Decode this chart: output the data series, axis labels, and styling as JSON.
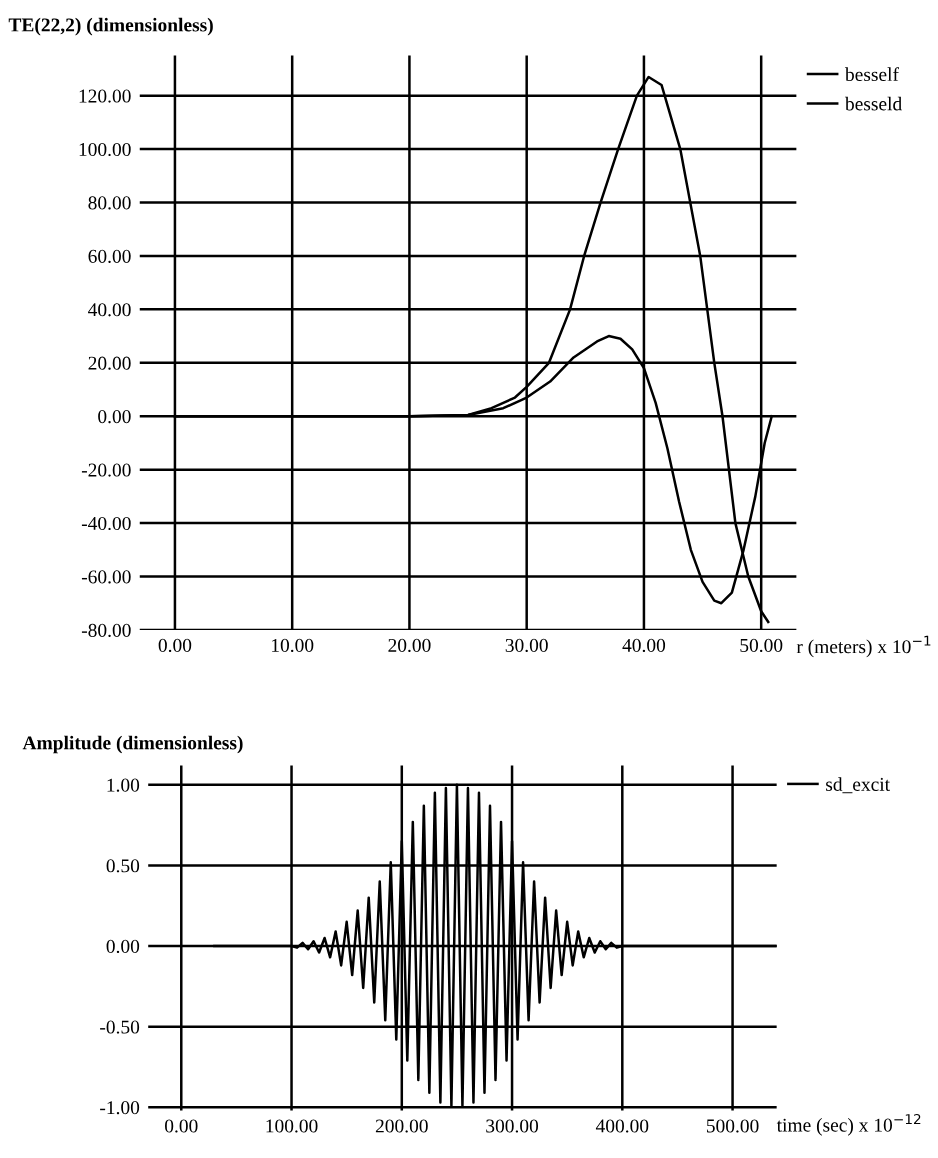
{
  "chart_data": [
    {
      "type": "line",
      "ylabel": "TE(22,2) (dimensionless)",
      "xlabel": "r (meters) x 10$^{−1}$",
      "xlim": [
        -3,
        53
      ],
      "ylim": [
        -80,
        135
      ],
      "xticks": [
        {
          "value": 0,
          "label": "0.00"
        },
        {
          "value": 10,
          "label": "10.00"
        },
        {
          "value": 20,
          "label": "20.00"
        },
        {
          "value": 30,
          "label": "30.00"
        },
        {
          "value": 40,
          "label": "40.00"
        },
        {
          "value": 50,
          "label": "50.00"
        }
      ],
      "yticks": [
        {
          "value": -80,
          "label": "-80.00"
        },
        {
          "value": -60,
          "label": "-60.00"
        },
        {
          "value": -40,
          "label": "-40.00"
        },
        {
          "value": -20,
          "label": "-20.00"
        },
        {
          "value": 0,
          "label": "0.00"
        },
        {
          "value": 20,
          "label": "20.00"
        },
        {
          "value": 40,
          "label": "40.00"
        },
        {
          "value": 60,
          "label": "60.00"
        },
        {
          "value": 80,
          "label": "80.00"
        },
        {
          "value": 100,
          "label": "100.00"
        },
        {
          "value": 120,
          "label": "120.00"
        }
      ],
      "grid": true,
      "legend": "top right",
      "marker": "none",
      "line_style": "solid",
      "series": [
        {
          "name": "besself",
          "color": "#000000",
          "x": [
            0,
            20,
            25,
            27,
            29,
            30,
            31.9,
            33.7,
            34.9,
            36.3,
            37.8,
            39.4,
            40.4,
            41.5,
            43.1,
            44.8,
            45.4,
            46,
            46.7,
            47.8,
            48.9,
            50,
            50.6
          ],
          "values": [
            0,
            0,
            0.5,
            3,
            7,
            11,
            20,
            40,
            60,
            80,
            100,
            120,
            127,
            124,
            100,
            60,
            40,
            20,
            0,
            -40,
            -60,
            -73,
            -77
          ]
        },
        {
          "name": "besseld",
          "color": "#000000",
          "x": [
            0,
            20,
            25,
            28,
            30,
            32,
            34,
            36,
            37,
            38,
            39,
            40,
            41,
            42,
            43,
            44,
            45,
            46,
            46.6,
            47.5,
            48.5,
            49.5,
            50.3,
            50.9
          ],
          "values": [
            0,
            0,
            0.5,
            3,
            7,
            13,
            22,
            28,
            30,
            29,
            25,
            18,
            5,
            -12,
            -32,
            -50,
            -62,
            -69,
            -70,
            -66,
            -50,
            -30,
            -10,
            0
          ]
        }
      ]
    },
    {
      "type": "line",
      "ylabel": "Amplitude (dimensionless)",
      "xlabel": "time (sec) x 10$^{−12}$",
      "xlim": [
        -30,
        540
      ],
      "ylim": [
        -1.02,
        1.12
      ],
      "xticks": [
        {
          "value": 0,
          "label": "0.00"
        },
        {
          "value": 100,
          "label": "100.00"
        },
        {
          "value": 200,
          "label": "200.00"
        },
        {
          "value": 300,
          "label": "300.00"
        },
        {
          "value": 400,
          "label": "400.00"
        },
        {
          "value": 500,
          "label": "500.00"
        }
      ],
      "yticks": [
        {
          "value": -1,
          "label": "-1.00"
        },
        {
          "value": -0.5,
          "label": "-0.50"
        },
        {
          "value": 0,
          "label": "0.00"
        },
        {
          "value": 0.5,
          "label": "0.50"
        },
        {
          "value": 1,
          "label": "1.00"
        }
      ],
      "grid": true,
      "legend": "top right",
      "marker": "none",
      "line_style": "solid",
      "series": [
        {
          "name": "sd_excit",
          "color": "#000000",
          "x": [
            30,
            100,
            105,
            110,
            115,
            120,
            125,
            130,
            135,
            140,
            145,
            150,
            155,
            160,
            165,
            170,
            175,
            180,
            185,
            190,
            195,
            200,
            205,
            210,
            215,
            220,
            225,
            230,
            235,
            240,
            245,
            250,
            255,
            260,
            265,
            270,
            275,
            280,
            285,
            290,
            295,
            300,
            305,
            310,
            315,
            320,
            325,
            330,
            335,
            340,
            345,
            350,
            355,
            360,
            365,
            370,
            375,
            380,
            385,
            390,
            395,
            400,
            540
          ],
          "values": [
            0,
            0,
            -0.01,
            0.02,
            -0.02,
            0.03,
            -0.04,
            0.05,
            -0.07,
            0.09,
            -0.12,
            0.15,
            -0.18,
            0.22,
            -0.26,
            0.3,
            -0.35,
            0.4,
            -0.46,
            0.52,
            -0.58,
            0.65,
            -0.71,
            0.77,
            -0.83,
            0.87,
            -0.91,
            0.95,
            -0.97,
            0.98,
            -0.99,
            1.0,
            -0.99,
            0.98,
            -0.97,
            0.95,
            -0.91,
            0.87,
            -0.83,
            0.77,
            -0.71,
            0.65,
            -0.58,
            0.52,
            -0.46,
            0.4,
            -0.35,
            0.3,
            -0.26,
            0.22,
            -0.18,
            0.15,
            -0.12,
            0.09,
            -0.07,
            0.05,
            -0.04,
            0.03,
            -0.02,
            0.02,
            -0.01,
            0,
            0
          ]
        }
      ]
    }
  ]
}
